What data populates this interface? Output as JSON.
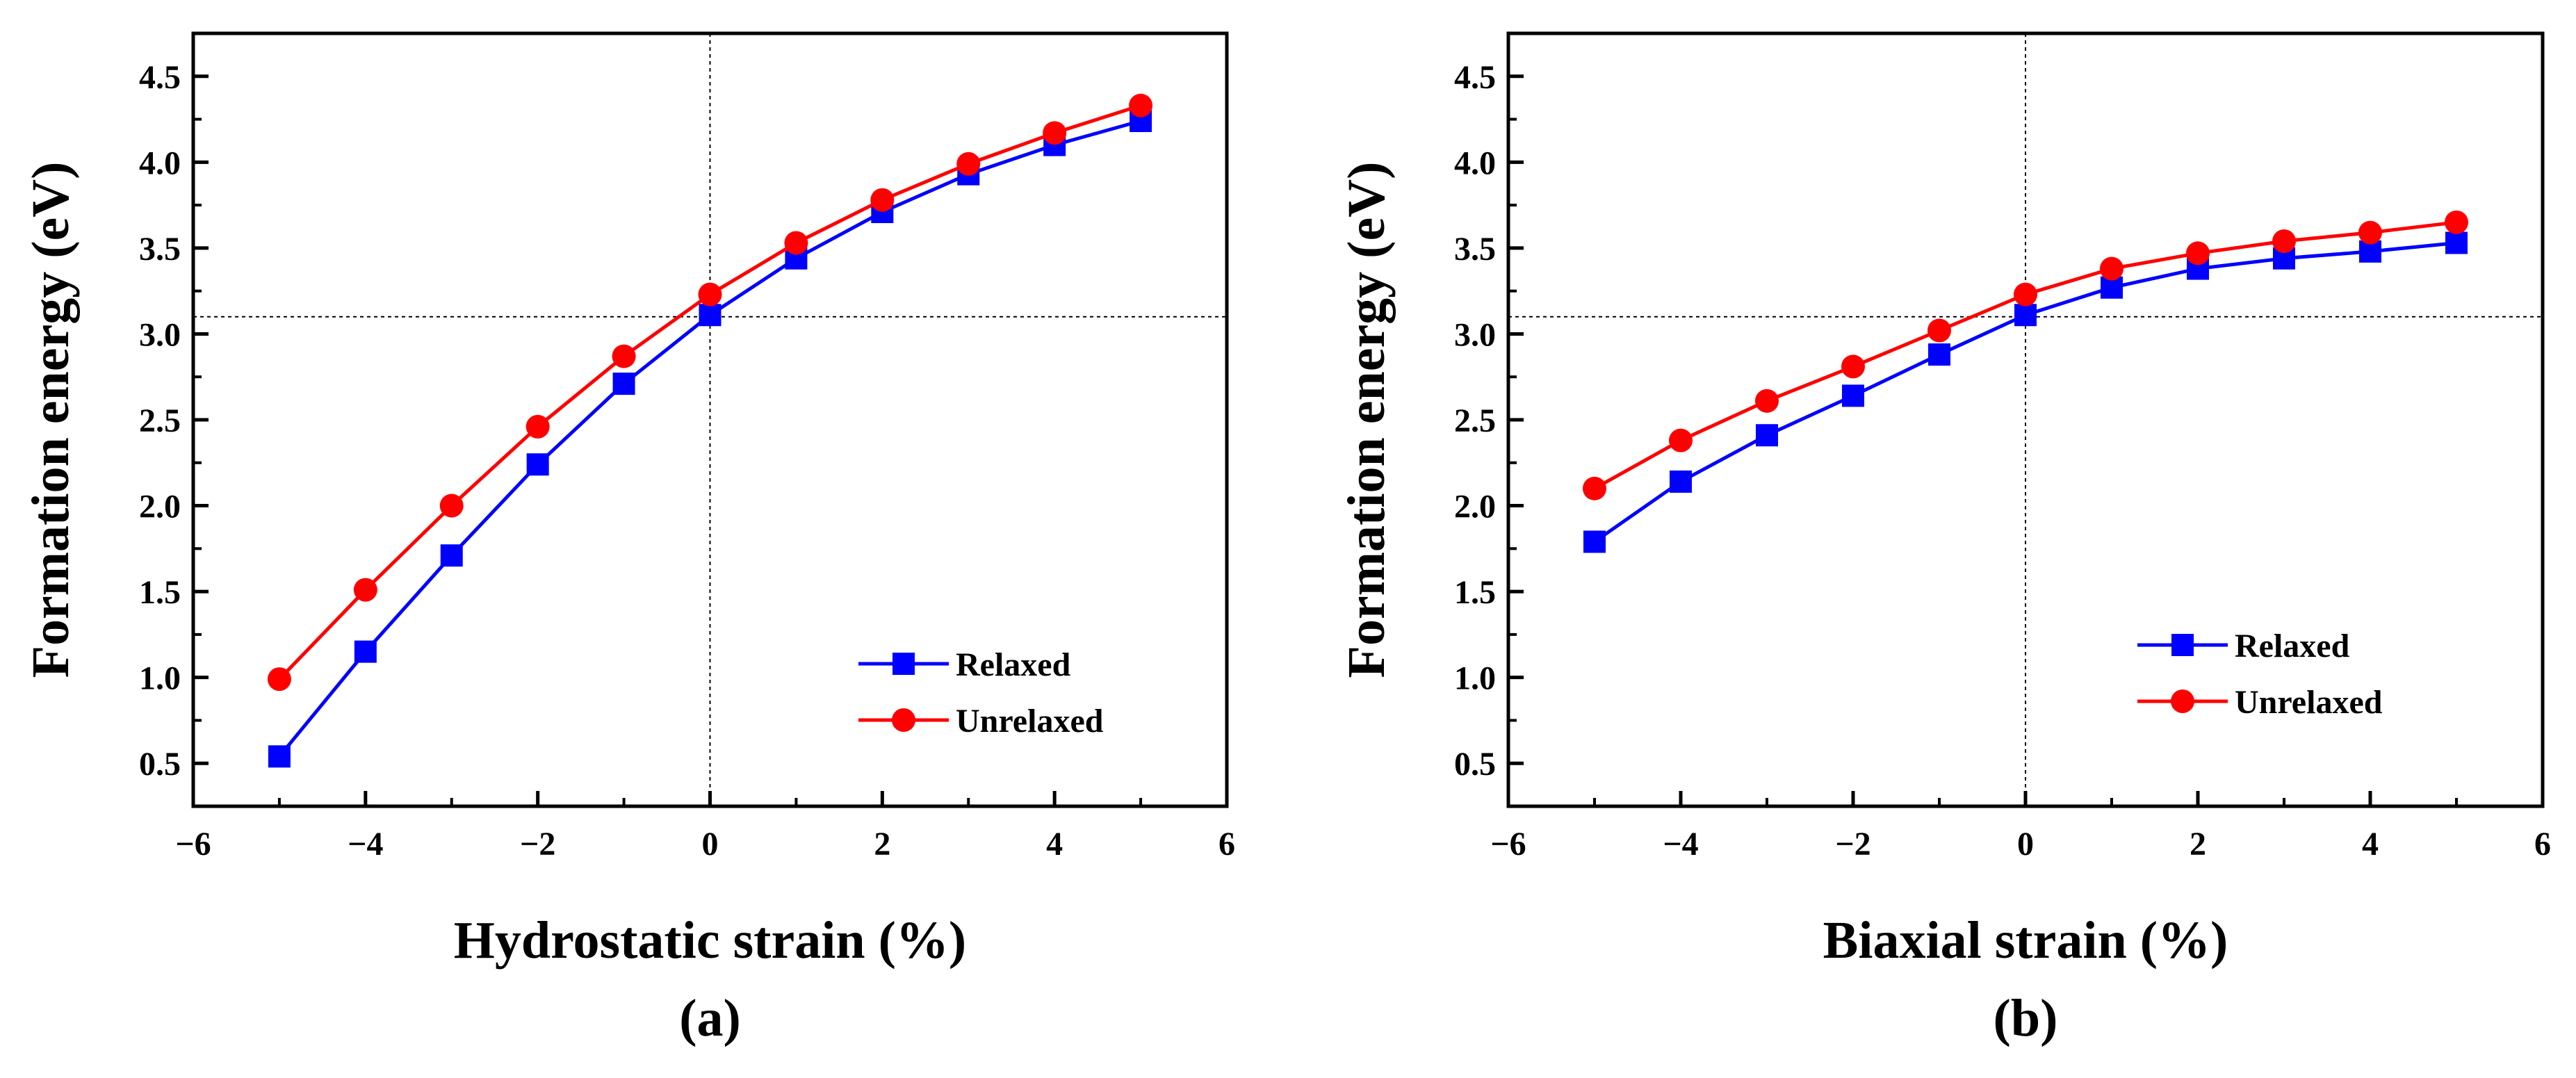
{
  "chart_data": [
    {
      "type": "line",
      "panel_label": "(a)",
      "xlabel": "Hydrostatic strain (%)",
      "ylabel": "Formation energy (eV)",
      "xlim": [
        -6,
        6
      ],
      "ylim": [
        0.25,
        4.75
      ],
      "x_ticks": [
        -6,
        -4,
        -2,
        0,
        2,
        4,
        6
      ],
      "x_tick_labels": [
        "−6",
        "−4",
        "−2",
        "0",
        "2",
        "4",
        "6"
      ],
      "y_ticks": [
        0.5,
        1.0,
        1.5,
        2.0,
        2.5,
        3.0,
        3.5,
        4.0,
        4.5
      ],
      "y_tick_labels": [
        "0.5",
        "1.0",
        "1.5",
        "2.0",
        "2.5",
        "3.0",
        "3.5",
        "4.0",
        "4.5"
      ],
      "reference_lines": {
        "x": 0,
        "y": 3.1
      },
      "legend_position": "lower-right",
      "x": [
        -5,
        -4,
        -3,
        -2,
        -1,
        0,
        1,
        2,
        3,
        4,
        5
      ],
      "series": [
        {
          "name": "Relaxed",
          "color": "#0000ff",
          "marker": "square",
          "values": [
            0.54,
            1.15,
            1.71,
            2.24,
            2.71,
            3.11,
            3.44,
            3.71,
            3.93,
            4.1,
            4.24
          ]
        },
        {
          "name": "Unrelaxed",
          "color": "#ff0000",
          "marker": "circle",
          "values": [
            0.99,
            1.51,
            2.0,
            2.46,
            2.87,
            3.23,
            3.53,
            3.78,
            3.99,
            4.17,
            4.33
          ]
        }
      ]
    },
    {
      "type": "line",
      "panel_label": "(b)",
      "xlabel": "Biaxial strain (%)",
      "ylabel": "Formation energy (eV)",
      "xlim": [
        -6,
        6
      ],
      "ylim": [
        0.25,
        4.75
      ],
      "x_ticks": [
        -6,
        -4,
        -2,
        0,
        2,
        4,
        6
      ],
      "x_tick_labels": [
        "−6",
        "−4",
        "−2",
        "0",
        "2",
        "4",
        "6"
      ],
      "y_ticks": [
        0.5,
        1.0,
        1.5,
        2.0,
        2.5,
        3.0,
        3.5,
        4.0,
        4.5
      ],
      "y_tick_labels": [
        "0.5",
        "1.0",
        "1.5",
        "2.0",
        "2.5",
        "3.0",
        "3.5",
        "4.0",
        "4.5"
      ],
      "reference_lines": {
        "x": 0,
        "y": 3.1
      },
      "legend_position": "lower-right",
      "x": [
        -5,
        -4,
        -3,
        -2,
        -1,
        0,
        1,
        2,
        3,
        4,
        5
      ],
      "series": [
        {
          "name": "Relaxed",
          "color": "#0000ff",
          "marker": "square",
          "values": [
            1.79,
            2.14,
            2.41,
            2.64,
            2.88,
            3.11,
            3.27,
            3.38,
            3.44,
            3.48,
            3.53
          ]
        },
        {
          "name": "Unrelaxed",
          "color": "#ff0000",
          "marker": "circle",
          "values": [
            2.1,
            2.38,
            2.61,
            2.81,
            3.02,
            3.23,
            3.38,
            3.47,
            3.54,
            3.59,
            3.65
          ]
        }
      ]
    }
  ]
}
